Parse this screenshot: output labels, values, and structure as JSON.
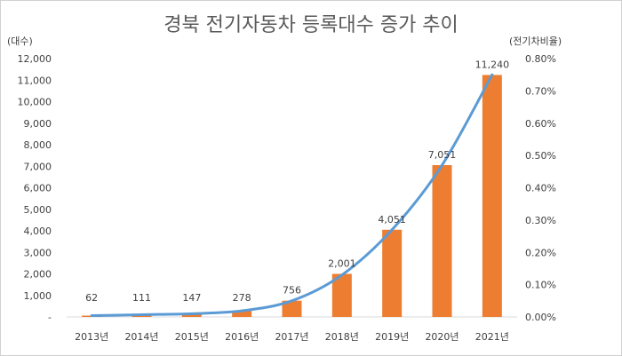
{
  "chart_data": {
    "type": "bar+line",
    "title": "경북 전기자동차 등록대수 증가 추이",
    "left_axis_unit": "(대수)",
    "right_axis_unit": "(전기차비율)",
    "categories": [
      "2013년",
      "2014년",
      "2015년",
      "2016년",
      "2017년",
      "2018년",
      "2019년",
      "2020년",
      "2021년"
    ],
    "left_ticks": [
      "-",
      "1,000",
      "2,000",
      "3,000",
      "4,000",
      "5,000",
      "6,000",
      "7,000",
      "8,000",
      "9,000",
      "10,000",
      "11,000",
      "12,000"
    ],
    "right_ticks": [
      "0.00%",
      "0.10%",
      "0.20%",
      "0.30%",
      "0.40%",
      "0.50%",
      "0.60%",
      "0.70%",
      "0.80%"
    ],
    "ylim_left": [
      0,
      12000
    ],
    "ylim_right": [
      0,
      0.8
    ],
    "series": [
      {
        "type": "bar",
        "axis": "left",
        "color": "#ED7D31",
        "values": [
          62,
          111,
          147,
          278,
          756,
          2001,
          4051,
          7051,
          11240
        ],
        "labels": [
          "62",
          "111",
          "147",
          "278",
          "756",
          "2,001",
          "4,051",
          "7,051",
          "11,240"
        ]
      },
      {
        "type": "line",
        "axis": "right",
        "color": "#5B9BD5",
        "values": [
          0.004,
          0.007,
          0.01,
          0.019,
          0.05,
          0.13,
          0.27,
          0.47,
          0.75
        ]
      }
    ],
    "grid": false,
    "legend": "none"
  }
}
